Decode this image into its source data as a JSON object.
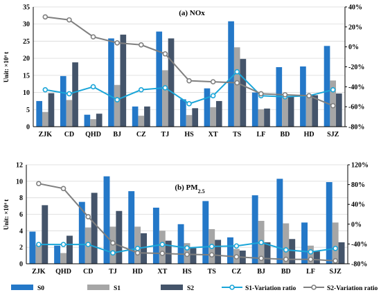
{
  "colors": {
    "S0": "#2478c8",
    "S1": "#a6a6a6",
    "S2": "#44546a",
    "S1_ratio": "#1aa5d8",
    "S2_ratio": "#7f7f7f"
  },
  "legend": {
    "S0": "S0",
    "S1": "S1",
    "S2": "S2",
    "S1_ratio": "S1-Variation ratio",
    "S2_ratio": "S2-Variation ratio"
  },
  "chart_data": [
    {
      "type": "bar",
      "title": "(a) NOx",
      "ylabel": "Unit: ×10⁴ t",
      "ylim": [
        0,
        35
      ],
      "yticks": [
        0,
        5,
        10,
        15,
        20,
        25,
        30,
        35
      ],
      "y2lim": [
        -80,
        40
      ],
      "y2ticks": [
        "-80%",
        "-60%",
        "-40%",
        "-20%",
        "0%",
        "20%",
        "40%"
      ],
      "y2tickvalues": [
        -80,
        -60,
        -40,
        -20,
        0,
        20,
        40
      ],
      "grid": true,
      "categories": [
        "ZJK",
        "CD",
        "QHD",
        "BJ",
        "CZ",
        "TJ",
        "HS",
        "XT",
        "TS",
        "LF",
        "BD",
        "HD",
        "SJZ"
      ],
      "series": [
        {
          "name": "S0",
          "kind": "bar",
          "values": [
            7.5,
            14.8,
            3.5,
            25.8,
            5.9,
            27.8,
            8.0,
            11.2,
            30.8,
            10.0,
            17.4,
            17.6,
            23.6
          ]
        },
        {
          "name": "S1",
          "kind": "bar",
          "values": [
            4.3,
            7.8,
            2.2,
            12.2,
            3.2,
            16.5,
            3.4,
            5.7,
            23.2,
            5.1,
            8.8,
            9.0,
            13.5
          ]
        },
        {
          "name": "S2",
          "kind": "bar",
          "values": [
            9.8,
            18.8,
            3.8,
            26.9,
            5.9,
            25.8,
            5.4,
            7.5,
            19.8,
            5.3,
            9.0,
            9.2,
            9.7
          ]
        },
        {
          "name": "S1-Variation ratio",
          "kind": "line",
          "axis": "right",
          "values": [
            -43,
            -47,
            -40,
            -53,
            -43,
            -41,
            -57,
            -49,
            -25,
            -49,
            -50,
            -49,
            -43
          ]
        },
        {
          "name": "S2-Variation ratio",
          "kind": "line",
          "axis": "right",
          "values": [
            30,
            27,
            10,
            4,
            2,
            -7,
            -34,
            -35,
            -36,
            -47,
            -48,
            -49,
            -59
          ]
        }
      ]
    },
    {
      "type": "bar",
      "title": "(b) PM",
      "title_sub": "2.5",
      "ylabel": "Unit: ×10⁴ t",
      "ylim": [
        0,
        12
      ],
      "yticks": [
        0,
        2,
        4,
        6,
        8,
        10,
        12
      ],
      "y2lim": [
        -80,
        120
      ],
      "y2ticks": [
        "-80%",
        "-40%",
        "0%",
        "40%",
        "80%",
        "120%"
      ],
      "y2tickvalues": [
        -80,
        -40,
        0,
        40,
        80,
        120
      ],
      "grid": true,
      "categories": [
        "ZJK",
        "QHD",
        "CD",
        "TJ",
        "HD",
        "XT",
        "HS",
        "TS",
        "CZ",
        "BJ",
        "BD",
        "LF",
        "SJZ"
      ],
      "series": [
        {
          "name": "S0",
          "kind": "bar",
          "values": [
            3.9,
            2.2,
            7.5,
            10.6,
            8.8,
            6.8,
            4.8,
            7.6,
            3.2,
            8.3,
            10.3,
            5.0,
            9.9
          ]
        },
        {
          "name": "S1",
          "kind": "bar",
          "values": [
            2.3,
            1.3,
            4.4,
            4.5,
            4.5,
            4.0,
            2.5,
            4.2,
            1.8,
            5.2,
            4.9,
            2.2,
            5.0
          ]
        },
        {
          "name": "S2",
          "kind": "bar",
          "values": [
            7.1,
            3.4,
            8.6,
            6.4,
            3.7,
            2.8,
            1.9,
            2.9,
            1.6,
            2.6,
            3.0,
            1.5,
            2.6
          ]
        },
        {
          "name": "S1-Variation ratio",
          "kind": "line",
          "axis": "right",
          "values": [
            -41,
            -41,
            -41,
            -58,
            -49,
            -41,
            -48,
            -45,
            -44,
            -37,
            -52,
            -56,
            -49
          ]
        },
        {
          "name": "S2-Variation ratio",
          "kind": "line",
          "axis": "right",
          "values": [
            82,
            72,
            15,
            -38,
            -58,
            -59,
            -61,
            -62,
            -66,
            -69,
            -71,
            -71,
            -74
          ]
        }
      ]
    }
  ]
}
